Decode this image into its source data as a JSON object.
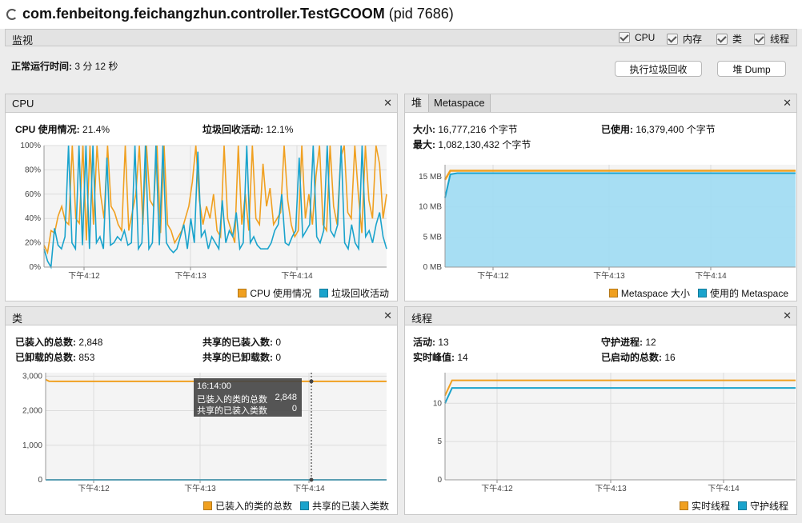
{
  "window": {
    "title_main": "com.fenbeitong.feichangzhun.controller.TestGCOOM",
    "title_pid": "(pid 7686)"
  },
  "monitor": {
    "label": "监视",
    "checkboxes": [
      {
        "label": "CPU",
        "checked": true
      },
      {
        "label": "内存",
        "checked": true
      },
      {
        "label": "类",
        "checked": true
      },
      {
        "label": "线程",
        "checked": true
      }
    ],
    "uptime_label": "正常运行时间:",
    "uptime_value": "3 分 12 秒",
    "gc_button": "执行垃圾回收",
    "dump_button": "堆 Dump"
  },
  "cpu_panel": {
    "title": "CPU",
    "usage_label": "CPU 使用情况:",
    "usage_value": "21.4%",
    "gc_label": "垃圾回收活动:",
    "gc_value": "12.1%",
    "legend": [
      "CPU 使用情况",
      "垃圾回收活动"
    ]
  },
  "memory_panel": {
    "tabs": [
      "堆",
      "Metaspace"
    ],
    "active_tab": "Metaspace",
    "size_label": "大小:",
    "size_value": "16,777,216 个字节",
    "used_label": "已使用:",
    "used_value": "16,379,400 个字节",
    "max_label": "最大:",
    "max_value": "1,082,130,432 个字节",
    "legend": [
      "Metaspace 大小",
      "使用的 Metaspace"
    ]
  },
  "classes_panel": {
    "title": "类",
    "loaded_label": "已装入的总数:",
    "loaded_value": "2,848",
    "unloaded_label": "已卸载的总数:",
    "unloaded_value": "853",
    "shared_loaded_label": "共享的已装入数:",
    "shared_loaded_value": "0",
    "shared_unloaded_label": "共享的已卸载数:",
    "shared_unloaded_value": "0",
    "legend": [
      "已装入的类的总数",
      "共享的已装入类数"
    ],
    "tooltip": {
      "time": "16:14:00",
      "rows": [
        {
          "label": "已装入的类的总数",
          "value": "2,848"
        },
        {
          "label": "共享的已装入类数",
          "value": "0"
        }
      ]
    }
  },
  "threads_panel": {
    "title": "线程",
    "active_label": "活动:",
    "active_value": "13",
    "peak_label": "实时峰值:",
    "peak_value": "14",
    "daemon_label": "守护进程:",
    "daemon_value": "12",
    "started_label": "已启动的总数:",
    "started_value": "16",
    "legend": [
      "实时线程",
      "守护线程"
    ]
  },
  "colors": {
    "orange": "#f0a020",
    "blue": "#1aa3cc",
    "fill_blue": "#9fdcf3"
  },
  "chart_data": [
    {
      "type": "line",
      "x_ticks": [
        "下午4:12",
        "下午4:13",
        "下午4:14"
      ],
      "y_ticks": [
        "0%",
        "20%",
        "40%",
        "60%",
        "80%",
        "100%"
      ],
      "ylim": [
        0,
        100
      ],
      "series": [
        {
          "name": "CPU 使用情况",
          "values": [
            18,
            12,
            30,
            28,
            42,
            50,
            38,
            35,
            100,
            40,
            36,
            100,
            22,
            100,
            35,
            100,
            60,
            40,
            100,
            50,
            45,
            35,
            30,
            100,
            30,
            45,
            60,
            100,
            35,
            100,
            55,
            50,
            100,
            28,
            100,
            35,
            30,
            20,
            25,
            30,
            40,
            50,
            70,
            100,
            55,
            35,
            50,
            40,
            60,
            30,
            25,
            100,
            40,
            30,
            20,
            100,
            35,
            60,
            30,
            100,
            40,
            35,
            85,
            50,
            65,
            35,
            40,
            45,
            100,
            55,
            35,
            25,
            30,
            100,
            40,
            60,
            35,
            75,
            100,
            35,
            30,
            100,
            50,
            35,
            90,
            100,
            45,
            40,
            100,
            60,
            28,
            100,
            55,
            40,
            100,
            85,
            40,
            60
          ]
        },
        {
          "name": "垃圾回收活动",
          "values": [
            15,
            5,
            0,
            32,
            18,
            15,
            25,
            100,
            20,
            15,
            100,
            18,
            100,
            15,
            100,
            20,
            25,
            15,
            90,
            18,
            20,
            25,
            22,
            30,
            18,
            20,
            100,
            15,
            20,
            100,
            15,
            20,
            100,
            18,
            100,
            20,
            15,
            12,
            15,
            25,
            35,
            15,
            40,
            20,
            95,
            25,
            30,
            15,
            25,
            20,
            15,
            55,
            20,
            30,
            25,
            45,
            15,
            20,
            100,
            20,
            25,
            18,
            15,
            15,
            15,
            20,
            30,
            35,
            60,
            20,
            18,
            25,
            30,
            90,
            25,
            30,
            35,
            100,
            25,
            20,
            30,
            100,
            30,
            25,
            35,
            100,
            20,
            15,
            35,
            20,
            15,
            100,
            25,
            30,
            20,
            35,
            45,
            25,
            15
          ]
        }
      ]
    },
    {
      "type": "area",
      "x_ticks": [
        "下午4:12",
        "下午4:13",
        "下午4:14"
      ],
      "y_ticks": [
        "0 MB",
        "5 MB",
        "10 MB",
        "15 MB"
      ],
      "ylim": [
        0,
        17
      ],
      "series": [
        {
          "name": "Metaspace 大小",
          "values": [
            14.5,
            16.0,
            16.0,
            16.0,
            16.0
          ]
        },
        {
          "name": "使用的 Metaspace",
          "values": [
            11.5,
            15.4,
            15.6,
            15.6,
            15.6
          ]
        }
      ]
    },
    {
      "type": "line",
      "x_ticks": [
        "下午4:12",
        "下午4:13",
        "下午4:14"
      ],
      "y_ticks": [
        "0",
        "1,000",
        "2,000",
        "3,000"
      ],
      "ylim": [
        0,
        3100
      ],
      "series": [
        {
          "name": "已装入的类的总数",
          "values": [
            2900,
            2850,
            2848,
            2848,
            2848,
            2848
          ]
        },
        {
          "name": "共享的已装入类数",
          "values": [
            0,
            0,
            0,
            0,
            0,
            0
          ]
        }
      ]
    },
    {
      "type": "line",
      "x_ticks": [
        "下午4:12",
        "下午4:13",
        "下午4:14"
      ],
      "y_ticks": [
        "0",
        "5",
        "10"
      ],
      "ylim": [
        0,
        14
      ],
      "series": [
        {
          "name": "实时线程",
          "values": [
            11,
            13,
            13,
            13,
            13,
            13
          ]
        },
        {
          "name": "守护线程",
          "values": [
            10,
            12,
            12,
            12,
            12,
            12
          ]
        }
      ]
    }
  ]
}
